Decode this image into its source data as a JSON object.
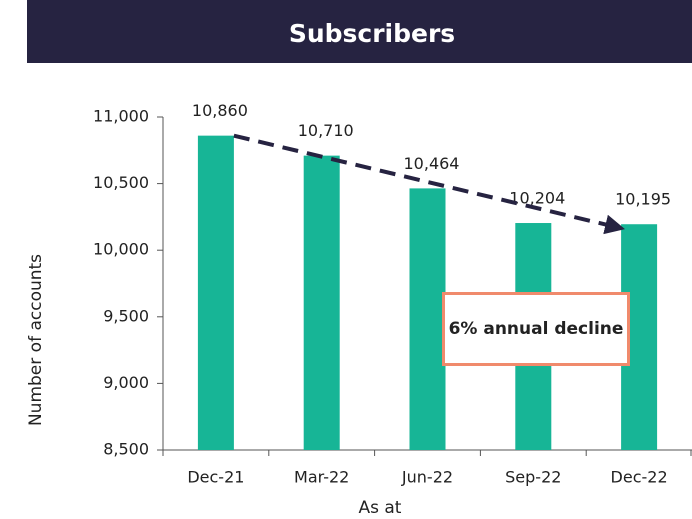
{
  "chart_data": {
    "type": "bar",
    "title": "Subscribers",
    "categories": [
      "Dec-21",
      "Mar-22",
      "Jun-22",
      "Sep-22",
      "Dec-22"
    ],
    "values": [
      10860,
      10710,
      10464,
      10204,
      10195
    ],
    "value_labels": [
      "10,860",
      "10,710",
      "10,464",
      "10,204",
      "10,195"
    ],
    "color": "#17b596",
    "ylim": [
      8500,
      11000
    ],
    "yticks": [
      {
        "value": 8500,
        "label": "8,500"
      },
      {
        "value": 9000,
        "label": "9,000"
      },
      {
        "value": 9500,
        "label": "9,500"
      },
      {
        "value": 10000,
        "label": "10,000"
      },
      {
        "value": 10500,
        "label": "10,500"
      },
      {
        "value": 11000,
        "label": "11,000"
      }
    ],
    "ylabel": "Number of accounts",
    "xlabel": "As at",
    "annotation": "6% annual decline",
    "grid": false
  }
}
